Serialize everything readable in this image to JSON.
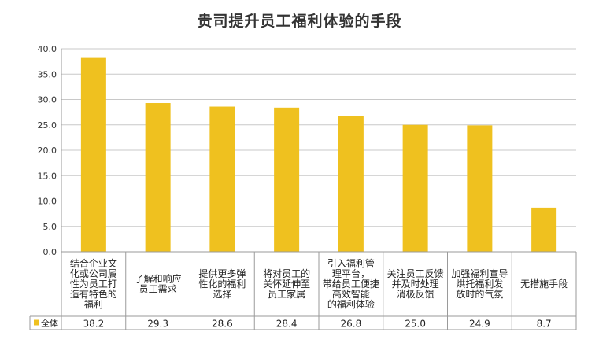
{
  "chart_data": {
    "type": "bar",
    "title": "贵司提升员工福利体验的手段",
    "categories": [
      [
        "结合企业文",
        "化或公司属",
        "性为员工打",
        "造有特色的",
        "福利"
      ],
      [
        "了解和响应",
        "员工需求"
      ],
      [
        "提供更多弹",
        "性化的福利",
        "选择"
      ],
      [
        "将对员工的",
        "关怀延伸至",
        "员工家属"
      ],
      [
        "引入福利管",
        "理平台，",
        "带给员工便捷",
        "高效智能",
        "的福利体验"
      ],
      [
        "关注员工反馈",
        "并及时处理",
        "消极反馈"
      ],
      [
        "加强福利宣导",
        "烘托福利发",
        "放时的气氛"
      ],
      [
        "无措施手段"
      ]
    ],
    "series": [
      {
        "name": "全体",
        "values": [
          38.2,
          29.3,
          28.6,
          28.4,
          26.8,
          25.0,
          24.9,
          8.7
        ]
      }
    ],
    "value_labels": [
      "38.2",
      "29.3",
      "28.6",
      "28.4",
      "26.8",
      "25.0",
      "24.9",
      "8.7"
    ],
    "y_ticks": [
      "0.0",
      "5.0",
      "10.0",
      "15.0",
      "20.0",
      "25.0",
      "30.0",
      "35.0",
      "40.0"
    ],
    "ylim": [
      0,
      40
    ],
    "grid": true,
    "legend_placement": "data-table",
    "colors": {
      "bar": "#EFC11F",
      "grid": "#C8C8C8",
      "axis": "#9A9A9A"
    }
  }
}
